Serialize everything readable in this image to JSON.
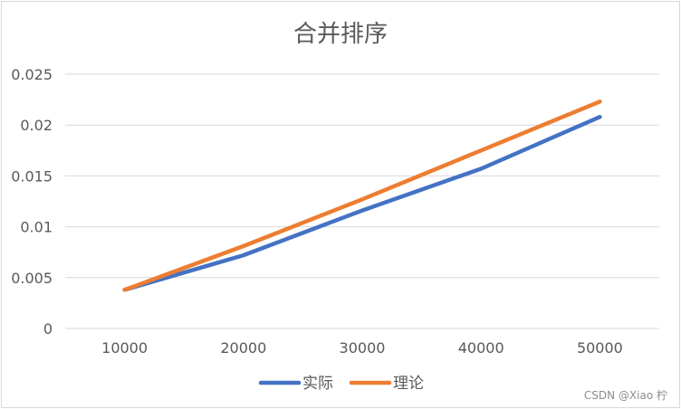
{
  "chart_data": {
    "type": "line",
    "title": "合并排序",
    "categories": [
      "10000",
      "20000",
      "30000",
      "40000",
      "50000"
    ],
    "series": [
      {
        "name": "实际",
        "color": "#4472C4",
        "values": [
          0.0038,
          0.0072,
          0.0116,
          0.0157,
          0.0208
        ]
      },
      {
        "name": "理论",
        "color": "#ED7D31",
        "values": [
          0.0038,
          0.0081,
          0.0127,
          0.0175,
          0.0223
        ]
      }
    ],
    "yticks": [
      "0",
      "0.005",
      "0.01",
      "0.015",
      "0.02",
      "0.025"
    ],
    "ylim": [
      0,
      0.025
    ],
    "grid": true,
    "legend_position": "bottom"
  },
  "watermark": "CSDN @Xiao 柠"
}
